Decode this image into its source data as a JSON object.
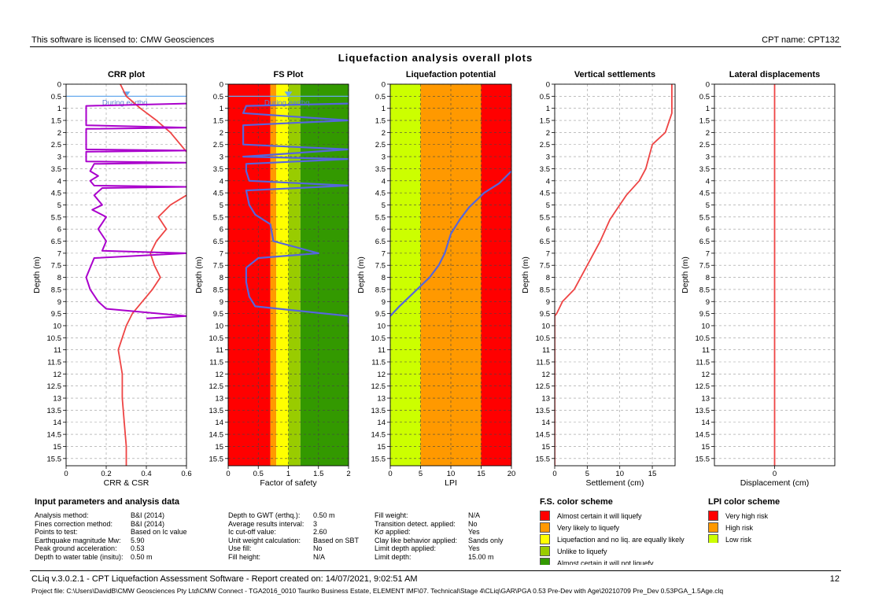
{
  "header": {
    "license": "This software is licensed to: CMW Geosciences",
    "cpt_name": "CPT name: CPT132",
    "main_title": "Liquefaction analysis overall plots"
  },
  "plots": {
    "depth_ticks": [
      "0",
      "0.5",
      "1",
      "1.5",
      "2",
      "2.5",
      "3",
      "3.5",
      "4",
      "4.5",
      "5",
      "5.5",
      "6",
      "6.5",
      "7",
      "7.5",
      "8",
      "8.5",
      "9",
      "9.5",
      "10",
      "10.5",
      "11",
      "11.5",
      "12",
      "12.5",
      "13",
      "13.5",
      "14",
      "14.5",
      "15",
      "15.5"
    ],
    "ylabel": "Depth (m)",
    "crr": {
      "title": "CRR plot",
      "xlabel": "CRR & CSR",
      "xticks": [
        "0",
        "0.2",
        "0.4",
        "0.6"
      ],
      "during_label": "During earthq."
    },
    "fs": {
      "title": "FS Plot",
      "xlabel": "Factor of safety",
      "xticks": [
        "0",
        "0.5",
        "1",
        "1.5",
        "2"
      ],
      "during_label": "During earthq."
    },
    "lpi": {
      "title": "Liquefaction potential",
      "xlabel": "LPI",
      "xticks": [
        "0",
        "5",
        "10",
        "15",
        "20"
      ]
    },
    "settle": {
      "title": "Vertical settlements",
      "xlabel": "Settlement (cm)",
      "xticks": [
        "0",
        "5",
        "10",
        "15"
      ]
    },
    "lateral": {
      "title": "Lateral displacements",
      "xlabel": "Displacement (cm)",
      "xticks": [
        "0"
      ]
    }
  },
  "colors": {
    "red": "#ff0000",
    "orange": "#ff9900",
    "yellow": "#ffff00",
    "light_green": "#99cc00",
    "green": "#339900",
    "lpi_low": "#ccff00",
    "curve_red": "#ee4444",
    "curve_purple": "#aa00cc",
    "curve_blue": "#5566dd",
    "gwt": "#66aaee"
  },
  "chart_data": [
    {
      "type": "line",
      "title": "CRR plot",
      "xlabel": "CRR & CSR",
      "ylabel": "Depth (m)",
      "xlim": [
        0,
        0.6
      ],
      "ylim": [
        0,
        15.8
      ],
      "y_inverted": true,
      "gwt_depth": 0.5,
      "series": [
        {
          "name": "CSR",
          "color": "#ee4444",
          "points": [
            [
              0.27,
              0
            ],
            [
              0.3,
              0.5
            ],
            [
              0.37,
              1
            ],
            [
              0.45,
              1.5
            ],
            [
              0.52,
              2
            ],
            [
              0.57,
              2.5
            ],
            [
              0.6,
              2.8
            ]
          ]
        },
        {
          "name": "CSR",
          "color": "#ee4444",
          "points": [
            [
              0.6,
              4.6
            ],
            [
              0.52,
              5
            ],
            [
              0.46,
              5.5
            ],
            [
              0.5,
              6
            ],
            [
              0.45,
              6.5
            ],
            [
              0.42,
              7
            ],
            [
              0.44,
              7.5
            ],
            [
              0.47,
              8
            ],
            [
              0.43,
              8.5
            ],
            [
              0.38,
              9
            ],
            [
              0.33,
              9.5
            ],
            [
              0.3,
              10
            ],
            [
              0.28,
              10.5
            ],
            [
              0.26,
              11
            ],
            [
              0.27,
              11.5
            ],
            [
              0.28,
              12
            ],
            [
              0.28,
              13
            ],
            [
              0.29,
              14
            ],
            [
              0.3,
              15
            ],
            [
              0.3,
              15.8
            ]
          ]
        },
        {
          "name": "CRR",
          "color": "#aa00cc",
          "points": [
            [
              0.6,
              0.8
            ],
            [
              0.1,
              0.9
            ],
            [
              0.1,
              1.7
            ],
            [
              0.6,
              1.8
            ],
            [
              0.1,
              1.85
            ],
            [
              0.1,
              2.7
            ],
            [
              0.6,
              2.75
            ],
            [
              0.1,
              2.8
            ],
            [
              0.1,
              3.2
            ],
            [
              0.6,
              3.25
            ],
            [
              0.14,
              3.3
            ],
            [
              0.12,
              3.6
            ],
            [
              0.16,
              3.8
            ],
            [
              0.12,
              4
            ],
            [
              0.14,
              4.2
            ],
            [
              0.6,
              4.25
            ],
            [
              0.18,
              4.3
            ],
            [
              0.14,
              4.6
            ],
            [
              0.18,
              5
            ],
            [
              0.13,
              5.2
            ],
            [
              0.2,
              5.5
            ],
            [
              0.16,
              6
            ],
            [
              0.2,
              6.5
            ],
            [
              0.18,
              6.9
            ],
            [
              0.6,
              7
            ],
            [
              0.14,
              7.2
            ],
            [
              0.12,
              7.6
            ],
            [
              0.1,
              8
            ],
            [
              0.12,
              8.5
            ],
            [
              0.16,
              9
            ],
            [
              0.2,
              9.3
            ],
            [
              0.6,
              9.6
            ],
            [
              0.4,
              9.7
            ]
          ]
        }
      ]
    },
    {
      "type": "line",
      "title": "FS Plot",
      "xlabel": "Factor of safety",
      "ylabel": "Depth (m)",
      "xlim": [
        0,
        2
      ],
      "ylim": [
        0,
        15.8
      ],
      "y_inverted": true,
      "gwt_depth": 0.5,
      "bands": [
        {
          "from": 0,
          "to": 0.7,
          "color": "#ff0000"
        },
        {
          "from": 0.7,
          "to": 0.8,
          "color": "#ff9900"
        },
        {
          "from": 0.8,
          "to": 1,
          "color": "#ffff00"
        },
        {
          "from": 1,
          "to": 1.2,
          "color": "#99cc00"
        },
        {
          "from": 1.2,
          "to": 2,
          "color": "#339900"
        }
      ],
      "series": [
        {
          "name": "FS",
          "color": "#5566dd",
          "points": [
            [
              2,
              0.8
            ],
            [
              0.3,
              0.9
            ],
            [
              0.25,
              1.2
            ],
            [
              2,
              1.5
            ],
            [
              0.25,
              1.7
            ],
            [
              0.25,
              2.5
            ],
            [
              2,
              2.7
            ],
            [
              0.25,
              3
            ],
            [
              2,
              3.1
            ],
            [
              0.3,
              3.3
            ],
            [
              0.3,
              3.6
            ],
            [
              0.35,
              4
            ],
            [
              2,
              4.2
            ],
            [
              0.3,
              4.4
            ],
            [
              0.35,
              5
            ],
            [
              0.45,
              5.4
            ],
            [
              0.7,
              5.8
            ],
            [
              0.75,
              6.5
            ],
            [
              1.5,
              7
            ],
            [
              0.5,
              7.2
            ],
            [
              0.3,
              7.6
            ],
            [
              0.3,
              8.2
            ],
            [
              0.35,
              8.8
            ],
            [
              0.45,
              9.2
            ],
            [
              2,
              9.6
            ],
            [
              2,
              9.9
            ]
          ]
        }
      ]
    },
    {
      "type": "line",
      "title": "Liquefaction potential",
      "xlabel": "LPI",
      "ylabel": "Depth (m)",
      "xlim": [
        0,
        20
      ],
      "ylim": [
        0,
        15.8
      ],
      "y_inverted": true,
      "bands": [
        {
          "from": 0,
          "to": 5,
          "color": "#ccff00"
        },
        {
          "from": 5,
          "to": 15,
          "color": "#ff9900"
        },
        {
          "from": 15,
          "to": 20,
          "color": "#ff0000"
        }
      ],
      "series": [
        {
          "name": "LPI",
          "color": "#5566dd",
          "points": [
            [
              20,
              3.6
            ],
            [
              18,
              4.1
            ],
            [
              15.5,
              4.5
            ],
            [
              13,
              5.1
            ],
            [
              11.5,
              5.6
            ],
            [
              10,
              6.2
            ],
            [
              9,
              7
            ],
            [
              8,
              7.5
            ],
            [
              6.5,
              8
            ],
            [
              4,
              8.6
            ],
            [
              1.5,
              9.2
            ],
            [
              0,
              9.6
            ]
          ]
        }
      ]
    },
    {
      "type": "line",
      "title": "Vertical settlements",
      "xlabel": "Settlement (cm)",
      "ylabel": "Depth (m)",
      "xlim": [
        0,
        18.5
      ],
      "ylim": [
        0,
        15.8
      ],
      "y_inverted": true,
      "series": [
        {
          "name": "Settlement",
          "color": "#ee4444",
          "points": [
            [
              18,
              0
            ],
            [
              18,
              1.2
            ],
            [
              17,
              2
            ],
            [
              15,
              2.5
            ],
            [
              14.5,
              3
            ],
            [
              14,
              3.5
            ],
            [
              13,
              4
            ],
            [
              11,
              4.6
            ],
            [
              8.5,
              5.6
            ],
            [
              7,
              6.5
            ],
            [
              5,
              7.5
            ],
            [
              3,
              8.5
            ],
            [
              1.2,
              9
            ],
            [
              0.3,
              9.5
            ],
            [
              0,
              9.6
            ],
            [
              0,
              15.8
            ]
          ]
        }
      ]
    },
    {
      "type": "line",
      "title": "Lateral displacements",
      "xlabel": "Displacement (cm)",
      "ylabel": "Depth (m)",
      "ylim": [
        0,
        15.8
      ],
      "y_inverted": true,
      "series": [
        {
          "name": "Displacement",
          "color": "#ee4444",
          "points": [
            [
              0,
              0
            ],
            [
              0,
              15.8
            ]
          ]
        }
      ]
    }
  ],
  "params": {
    "title": "Input parameters and analysis data",
    "col1_labels": [
      "Analysis method:",
      "Fines correction method:",
      "Points to test:",
      "Earthquake magnitude Mw:",
      "Peak ground acceleration:",
      "Depth to water table (insitu):"
    ],
    "col1_values": [
      "B&I (2014)",
      "B&I (2014)",
      "Based on Ic value",
      "5.90",
      "0.53",
      "0.50 m"
    ],
    "col2_labels": [
      "Depth to GWT (erthq.):",
      "Average results interval:",
      "Ic cut-off value:",
      "Unit weight calculation:",
      "Use fill:",
      "Fill height:"
    ],
    "col2_values": [
      "0.50 m",
      "3",
      "2.60",
      "Based on SBT",
      "No",
      "N/A"
    ],
    "col3_labels": [
      "Fill weight:",
      "Transition detect. applied:",
      "Kσ applied:",
      "Clay like behavior applied:",
      "Limit depth applied:",
      "Limit depth:"
    ],
    "col3_values": [
      "N/A",
      "No",
      "Yes",
      "Sands only",
      "Yes",
      "15.00 m"
    ]
  },
  "fs_scheme": {
    "title": "F.S. color scheme",
    "items": [
      "Almost certain it will liquefy",
      "Very likely to liquefy",
      "Liquefaction and no liq. are equally likely",
      "Unlike to liquefy",
      "Almost certain it will not liquefy"
    ]
  },
  "lpi_scheme": {
    "title": "LPI color scheme",
    "items": [
      "Very high risk",
      "High risk",
      "Low risk"
    ]
  },
  "footer": {
    "line1": "CLiq v.3.0.2.1 - CPT Liquefaction Assessment Software - Report created on: 14/07/2021, 9:02:51 AM",
    "page": "12",
    "line2": "Project file: C:\\Users\\DavidB\\CMW Geosciences Pty Ltd\\CMW Connect - TGA2016_0010 Tauriko Business Estate, ELEMENT IMF\\07. Technical\\Stage 4\\CLiq\\GAR\\PGA 0.53 Pre-Dev with Age\\20210709 Pre_Dev 0.53PGA_1.5Age.clq"
  }
}
